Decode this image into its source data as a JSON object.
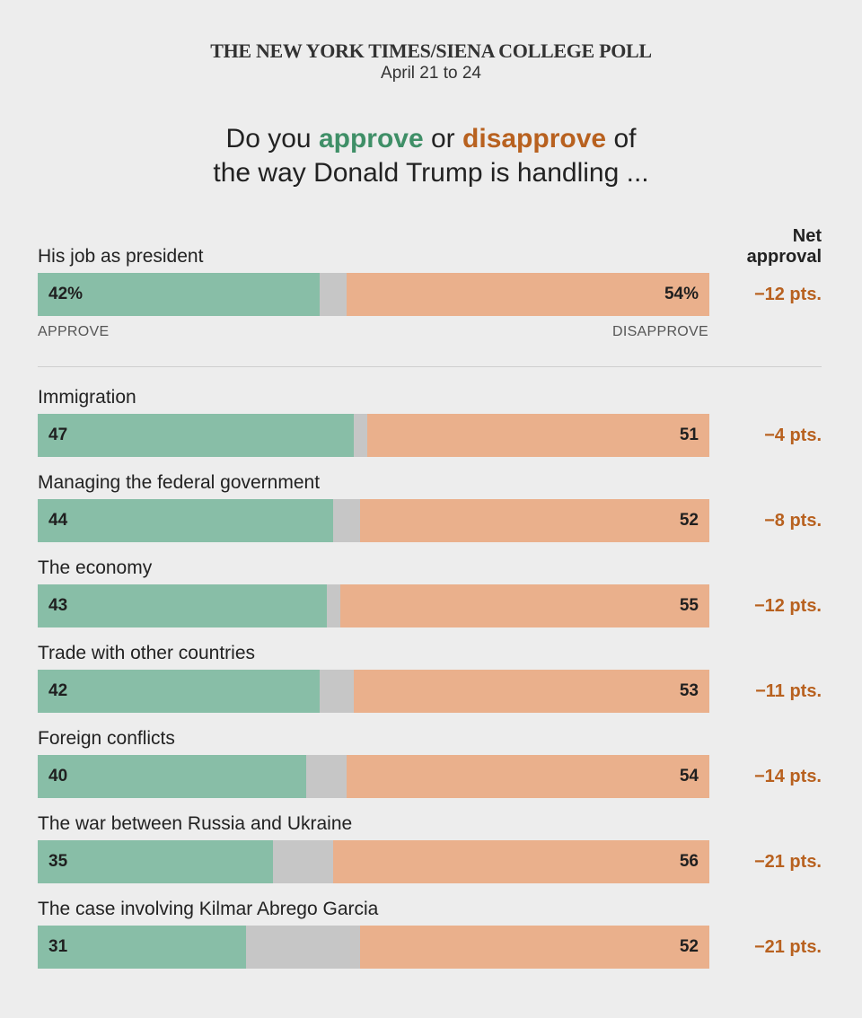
{
  "header": {
    "source": "THE NEW YORK TIMES/SIENA COLLEGE POLL",
    "dates": "April 21 to 24",
    "question_pre": "Do you",
    "question_approve": "approve",
    "question_or": "or",
    "question_disapprove": "disapprove",
    "question_post1": "of",
    "question_line2": "the way Donald Trump is handling ..."
  },
  "net_header": {
    "line1": "Net",
    "line2": "approval"
  },
  "axis": {
    "approve_label": "APPROVE",
    "disapprove_label": "DISAPPROVE"
  },
  "colors": {
    "approve": "#88bea7",
    "neutral": "#c6c6c6",
    "disapprove": "#eab08c",
    "approve_text": "#3f8f67",
    "disapprove_text": "#b8611f"
  },
  "chart_data": {
    "type": "bar",
    "stacked": true,
    "orientation": "horizontal",
    "title": "Do you approve or disapprove of the way Donald Trump is handling ...",
    "categories": [
      "His job as president",
      "Immigration",
      "Managing the federal government",
      "The economy",
      "Trade with other countries",
      "Foreign conflicts",
      "The war between Russia and Ukraine",
      "The case involving Kilmar Abrego Garcia"
    ],
    "series": [
      {
        "name": "Approve",
        "values": [
          42,
          47,
          44,
          43,
          42,
          40,
          35,
          31
        ]
      },
      {
        "name": "Disapprove",
        "values": [
          54,
          51,
          52,
          55,
          53,
          54,
          56,
          52
        ]
      }
    ],
    "value_labels": {
      "approve": [
        "42%",
        "47",
        "44",
        "43",
        "42",
        "40",
        "35",
        "31"
      ],
      "disapprove": [
        "54%",
        "51",
        "52",
        "55",
        "53",
        "54",
        "56",
        "52"
      ]
    },
    "net_labels": [
      "−12 pts.",
      "−4 pts.",
      "−8 pts.",
      "−12 pts.",
      "−11 pts.",
      "−14 pts.",
      "−21 pts.",
      "−21 pts."
    ],
    "xlim": [
      0,
      100
    ]
  }
}
